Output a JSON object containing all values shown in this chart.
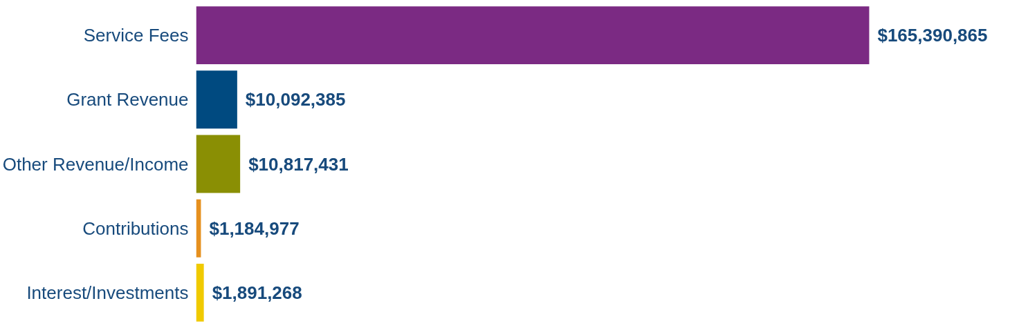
{
  "chart_data": {
    "type": "bar",
    "orientation": "horizontal",
    "categories": [
      "Service Fees",
      "Grant Revenue",
      "Other Revenue/Income",
      "Contributions",
      "Interest/Investments"
    ],
    "values": [
      165390865,
      10092385,
      10817431,
      1184977,
      1891268
    ],
    "colors": [
      "#7b2a83",
      "#004a80",
      "#8a8f04",
      "#e6901e",
      "#f0ca00"
    ],
    "value_labels": [
      "$165,390,865",
      "$10,092,385",
      "$10,817,431",
      "$1,184,977",
      "$1,891,268"
    ]
  }
}
